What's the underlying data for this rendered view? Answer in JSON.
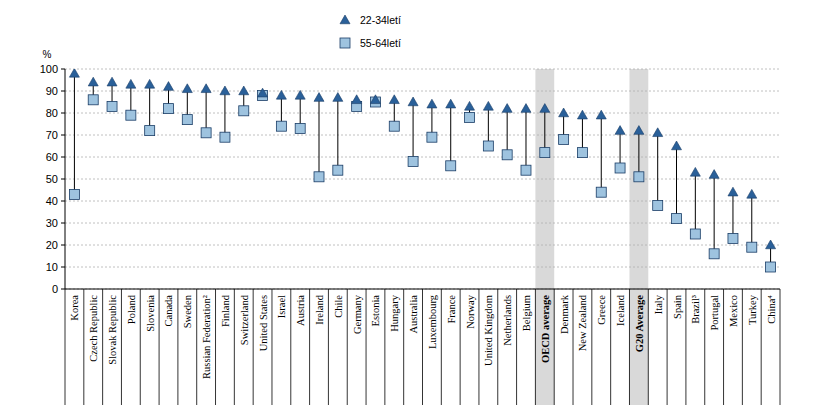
{
  "chart_data": {
    "type": "dumbbell",
    "y_label": "%",
    "categories": [
      "Korea",
      "Czech Republic",
      "Slovak Republic",
      "Poland",
      "Slovenia",
      "Canada",
      "Sweden",
      "Russian Federation²",
      "Finland",
      "Switzerland",
      "United States",
      "Israel",
      "Austria",
      "Ireland",
      "Chile",
      "Germany",
      "Estonia",
      "Hungary",
      "Australia",
      "Luxembourg",
      "France",
      "Norway",
      "United Kingdom",
      "Netherlands",
      "Belgium",
      "OECD average",
      "Denmark",
      "New Zealand",
      "Greece",
      "Iceland",
      "G20 Average",
      "Italy",
      "Spain",
      "Brazil³",
      "Portugal",
      "Mexico",
      "Turkey",
      "China⁴"
    ],
    "series": [
      {
        "name": "22-34letí",
        "color": "#2a6099",
        "marker": "triangle",
        "values": [
          98,
          94,
          94,
          93,
          93,
          92,
          91,
          91,
          90,
          90,
          89,
          88,
          88,
          87,
          87,
          86,
          86,
          86,
          85,
          84,
          84,
          83,
          83,
          82,
          82,
          82,
          80,
          79,
          79,
          72,
          72,
          71,
          65,
          53,
          52,
          44,
          43,
          20
        ]
      },
      {
        "name": "55-64letí",
        "color": "#9ec3df",
        "marker": "square",
        "values": [
          43,
          86,
          83,
          79,
          72,
          82,
          77,
          71,
          69,
          81,
          88,
          74,
          73,
          51,
          54,
          83,
          85,
          74,
          58,
          69,
          56,
          78,
          65,
          61,
          54,
          62,
          68,
          62,
          44,
          55,
          51,
          38,
          32,
          25,
          16,
          23,
          19,
          10
        ]
      }
    ],
    "ylim": [
      0,
      100
    ],
    "yticks": [
      0,
      10,
      20,
      30,
      40,
      50,
      60,
      70,
      80,
      90,
      100
    ],
    "grid": true,
    "legend": "top"
  }
}
